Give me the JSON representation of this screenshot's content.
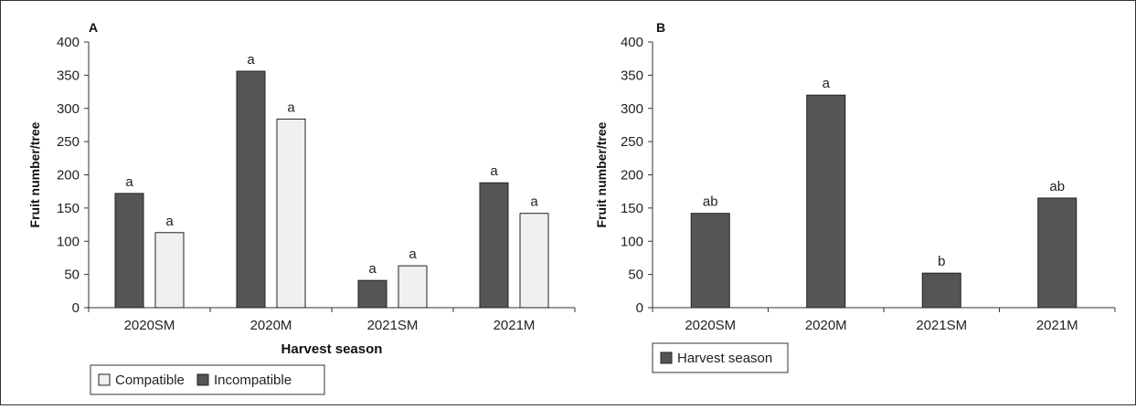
{
  "colors": {
    "dark": "#555555",
    "light": "#f0f0f0",
    "stroke": "#222222",
    "axis": "#333333"
  },
  "chart_data": [
    {
      "panel": "A",
      "type": "bar",
      "ylabel": "Fruit number/tree",
      "xlabel": "Harvest season",
      "ylim": [
        0,
        400
      ],
      "yticks": [
        "0",
        "50",
        "100",
        "150",
        "200",
        "250",
        "300",
        "350",
        "400"
      ],
      "categories": [
        "2020SM",
        "2020M",
        "2021SM",
        "2021M"
      ],
      "series": [
        {
          "name": "Incompatible",
          "color": "#555555",
          "values": [
            172,
            356,
            41,
            188
          ],
          "labels": [
            "a",
            "a",
            "a",
            "a"
          ]
        },
        {
          "name": "Compatible",
          "color": "#f0f0f0",
          "values": [
            113,
            284,
            63,
            142
          ],
          "labels": [
            "a",
            "a",
            "a",
            "a"
          ]
        }
      ],
      "legend": {
        "placement": "bottom-left",
        "entries": [
          {
            "name": "Compatible",
            "color": "#f0f0f0"
          },
          {
            "name": "Incompatible",
            "color": "#555555"
          }
        ]
      }
    },
    {
      "panel": "B",
      "type": "bar",
      "ylabel": "Fruit number/tree",
      "xlabel": "",
      "ylim": [
        0,
        400
      ],
      "yticks": [
        "0",
        "50",
        "100",
        "150",
        "200",
        "250",
        "300",
        "350",
        "400"
      ],
      "categories": [
        "2020SM",
        "2020M",
        "2021SM",
        "2021M"
      ],
      "series": [
        {
          "name": "Harvest season",
          "color": "#555555",
          "values": [
            142,
            320,
            52,
            165
          ],
          "labels": [
            "ab",
            "a",
            "b",
            "ab"
          ]
        }
      ],
      "legend": {
        "placement": "bottom-left",
        "entries": [
          {
            "name": "Harvest season",
            "color": "#555555"
          }
        ]
      }
    }
  ]
}
